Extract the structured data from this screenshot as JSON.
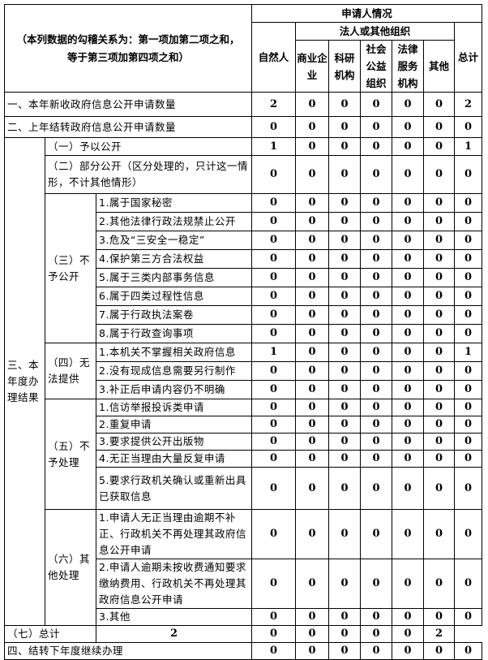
{
  "header": {
    "corner": "（本列数据的勾稽关系为：第一项加第二项之和，等于第三项加第四项之和）",
    "applicant": "申请人情况",
    "natural": "自然人",
    "legal_group": "法人或其他组织",
    "cols": [
      "商业企业",
      "科研机构",
      "社会公益组织",
      "法律服务机构",
      "其他"
    ],
    "total": "总计"
  },
  "groups": {
    "sec3": "三、本年度办理结果",
    "g3": "（三）不予公开",
    "g4": "（四）无法提供",
    "g5": "（五）不予处理",
    "g6": "（六）其他处理"
  },
  "rows": [
    {
      "label": "一、本年新收政府信息公开申请数量",
      "values": [
        2,
        0,
        0,
        0,
        0,
        0,
        2
      ]
    },
    {
      "label": "二、上年结转政府信息公开申请数量",
      "values": [
        0,
        0,
        0,
        0,
        0,
        0,
        0
      ]
    },
    {
      "label": "（一）予以公开",
      "values": [
        1,
        0,
        0,
        0,
        0,
        0,
        1
      ]
    },
    {
      "label": "（二）部分公开（区分处理的，只计这一情形，不计其他情形）",
      "values": [
        0,
        0,
        0,
        0,
        0,
        0,
        0
      ]
    },
    {
      "label": "1.属于国家秘密",
      "values": [
        0,
        0,
        0,
        0,
        0,
        0,
        0
      ]
    },
    {
      "label": "2.其他法律行政法规禁止公开",
      "values": [
        0,
        0,
        0,
        0,
        0,
        0,
        0
      ]
    },
    {
      "label": "3.危及“三安全一稳定”",
      "values": [
        0,
        0,
        0,
        0,
        0,
        0,
        0
      ]
    },
    {
      "label": "4.保护第三方合法权益",
      "values": [
        0,
        0,
        0,
        0,
        0,
        0,
        0
      ]
    },
    {
      "label": "5.属于三类内部事务信息",
      "values": [
        0,
        0,
        0,
        0,
        0,
        0,
        0
      ]
    },
    {
      "label": "6.属于四类过程性信息",
      "values": [
        0,
        0,
        0,
        0,
        0,
        0,
        0
      ]
    },
    {
      "label": "7.属于行政执法案卷",
      "values": [
        0,
        0,
        0,
        0,
        0,
        0,
        0
      ]
    },
    {
      "label": "8.属于行政查询事项",
      "values": [
        0,
        0,
        0,
        0,
        0,
        0,
        0
      ]
    },
    {
      "label": "1.本机关不掌握相关政府信息",
      "values": [
        1,
        0,
        0,
        0,
        0,
        0,
        1
      ]
    },
    {
      "label": "2.没有现成信息需要另行制作",
      "values": [
        0,
        0,
        0,
        0,
        0,
        0,
        0
      ]
    },
    {
      "label": "3.补正后申请内容仍不明确",
      "values": [
        0,
        0,
        0,
        0,
        0,
        0,
        0
      ]
    },
    {
      "label": "1.信访举报投诉类申请",
      "values": [
        0,
        0,
        0,
        0,
        0,
        0,
        0
      ]
    },
    {
      "label": "2.重复申请",
      "values": [
        0,
        0,
        0,
        0,
        0,
        0,
        0
      ]
    },
    {
      "label": "3.要求提供公开出版物",
      "values": [
        0,
        0,
        0,
        0,
        0,
        0,
        0
      ]
    },
    {
      "label": "4.无正当理由大量反复申请",
      "values": [
        0,
        0,
        0,
        0,
        0,
        0,
        0
      ]
    },
    {
      "label": "5.要求行政机关确认或重新出具已获取信息",
      "values": [
        0,
        0,
        0,
        0,
        0,
        0,
        0
      ]
    },
    {
      "label": "1.申请人无正当理由逾期不补正、行政机关不再处理其政府信息公开申请",
      "values": [
        0,
        0,
        0,
        0,
        0,
        0,
        0
      ]
    },
    {
      "label": "2.申请人逾期未按收费通知要求缴纳费用、行政机关不再处理其政府信息公开申请",
      "values": [
        0,
        0,
        0,
        0,
        0,
        0,
        0
      ]
    },
    {
      "label": "3.其他",
      "values": [
        0,
        0,
        0,
        0,
        0,
        0,
        0
      ]
    },
    {
      "label": "（七）总计",
      "values": [
        2,
        0,
        0,
        0,
        0,
        0,
        2
      ]
    },
    {
      "label": "四、结转下年度继续办理",
      "values": [
        0,
        0,
        0,
        0,
        0,
        0,
        0
      ]
    }
  ]
}
